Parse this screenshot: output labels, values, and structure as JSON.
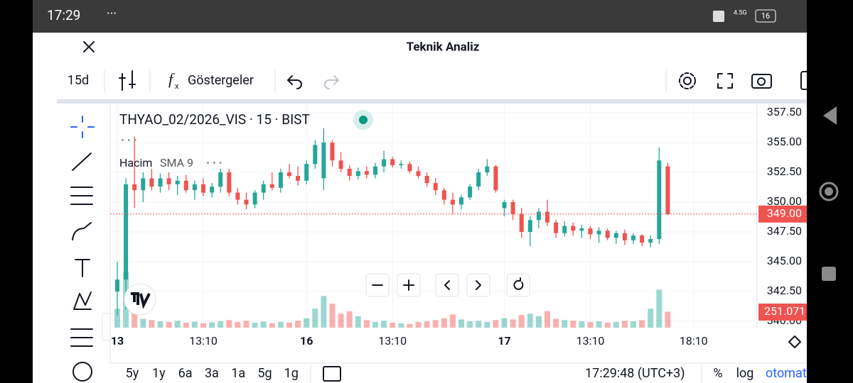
{
  "status_bar": {
    "time": "17:29",
    "network": "4.5G",
    "battery": "16"
  },
  "header": {
    "title": "Teknik Analiz"
  },
  "toolbar": {
    "interval": "15d",
    "indicators": "Göstergeler"
  },
  "legend": {
    "symbol": "THYAO_02/2026_VIS · 15 · BIST",
    "volume": "Hacim",
    "sma": "SMA 9"
  },
  "bottom_bar": {
    "ranges": [
      "5y",
      "1y",
      "6a",
      "3a",
      "1a",
      "5g",
      "1g"
    ],
    "clock": "17:29:48 (UTC+3)",
    "percent": "%",
    "log": "log",
    "auto": "otomat"
  },
  "chart_data": {
    "type": "candlestick",
    "categories": [
      "13",
      null,
      null,
      null,
      null,
      null,
      null,
      null,
      null,
      null,
      "13:10",
      null,
      null,
      null,
      null,
      null,
      null,
      null,
      null,
      null,
      null,
      null,
      "16",
      null,
      null,
      null,
      null,
      null,
      null,
      null,
      null,
      null,
      "13:10",
      null,
      null,
      null,
      null,
      null,
      null,
      null,
      null,
      null,
      null,
      null,
      null,
      "17",
      null,
      null,
      null,
      null,
      null,
      null,
      null,
      null,
      null,
      "13:10",
      null,
      null,
      null,
      null,
      null,
      null,
      null,
      null,
      null,
      null,
      null,
      "18:10"
    ],
    "open": [
      342.5,
      343.5,
      351.5,
      351,
      352,
      351.3,
      352,
      351.5,
      351.8,
      351,
      351.5,
      350.8,
      351.3,
      352.5,
      350.8,
      350.2,
      349.8,
      350.8,
      351.5,
      351.2,
      352.5,
      352.2,
      351.8,
      353.2,
      352,
      355,
      353.5,
      352.8,
      352.2,
      352.6,
      352.3,
      353,
      353.6,
      353.1,
      353.2,
      352.6,
      352.2,
      351.6,
      351,
      350.2,
      349.8,
      350.4,
      351.3,
      352.5,
      353,
      349.5,
      350,
      349,
      347.5,
      348.5,
      349.2,
      348.3,
      347.4,
      348,
      347.6,
      347.8,
      347.3,
      347.6,
      347,
      347.4,
      346.8,
      347.2,
      346.6,
      346.9,
      353,
      null,
      null,
      null
    ],
    "high": [
      345,
      352,
      355.5,
      352.5,
      352.8,
      352.4,
      352.5,
      352.2,
      352.3,
      351.8,
      352,
      351.6,
      352.8,
      352.8,
      351.2,
      350.8,
      351,
      351.8,
      352.5,
      352.8,
      353.2,
      353,
      353.5,
      355.2,
      356.2,
      355.2,
      354.2,
      353.1,
      352.9,
      353,
      353.3,
      354.3,
      353.8,
      353.5,
      353.4,
      353,
      352.5,
      352,
      351.2,
      350.8,
      350.6,
      351.5,
      352.8,
      353.6,
      353.1,
      350.2,
      350.2,
      349.5,
      348.8,
      349.5,
      350.2,
      348.5,
      348.4,
      348.3,
      348.1,
      348,
      347.9,
      347.8,
      347.6,
      347.7,
      347.4,
      347.3,
      347.2,
      354.6,
      353.3,
      null,
      null,
      null
    ],
    "low": [
      340.5,
      341,
      349.5,
      350,
      351,
      350.8,
      351,
      350.6,
      350.8,
      350.2,
      350.5,
      350.4,
      350.8,
      350.5,
      349.8,
      349.4,
      349.5,
      350.2,
      351,
      350.8,
      352,
      351.4,
      351.5,
      352.8,
      351,
      353,
      352.5,
      351.8,
      351.9,
      352,
      352,
      352.5,
      352.9,
      352.8,
      352.4,
      352,
      351.3,
      350.6,
      349.8,
      349,
      349.4,
      350.2,
      351,
      352.2,
      350.8,
      348.8,
      348.5,
      347,
      346.3,
      347.8,
      348,
      347,
      347.1,
      347.2,
      347,
      346.9,
      346.6,
      346.8,
      346.5,
      346.4,
      346.5,
      346.3,
      346.2,
      346.5,
      348.9,
      null,
      null,
      null
    ],
    "close": [
      343.5,
      351.5,
      351,
      352,
      351.3,
      352,
      351.5,
      351.8,
      351,
      351.5,
      350.8,
      351.3,
      352.5,
      350.8,
      350.2,
      349.8,
      350.8,
      351.5,
      351.2,
      352.5,
      352.2,
      351.8,
      353.2,
      354.8,
      355,
      353.5,
      352.8,
      352.2,
      352.6,
      352.3,
      353,
      353.6,
      353.1,
      353.2,
      352.6,
      352.2,
      351.6,
      351,
      350.2,
      349.8,
      350.4,
      351.3,
      352.5,
      353,
      351,
      350,
      349,
      347.5,
      348.5,
      349.2,
      348.3,
      347.4,
      348,
      347.6,
      347.8,
      347.3,
      347.6,
      347,
      347.4,
      346.8,
      347.2,
      346.6,
      346.9,
      353.5,
      349,
      null,
      null,
      null
    ],
    "volume": [
      300000,
      880000,
      250000,
      140000,
      120000,
      100000,
      90000,
      110000,
      80000,
      95000,
      70000,
      85000,
      100000,
      120000,
      90000,
      110000,
      80000,
      95000,
      70000,
      90000,
      80000,
      110000,
      150000,
      300000,
      500000,
      380000,
      220000,
      260000,
      180000,
      120000,
      90000,
      110000,
      80000,
      70000,
      60000,
      90000,
      100000,
      120000,
      150000,
      210000,
      130000,
      100000,
      110000,
      90000,
      120000,
      150000,
      130000,
      200000,
      220000,
      180000,
      260000,
      140000,
      120000,
      110000,
      100000,
      90000,
      100000,
      80000,
      90000,
      110000,
      100000,
      120000,
      300000,
      600000,
      251071,
      null,
      null,
      null
    ],
    "ylim": [
      340,
      357.5
    ],
    "yticks": [
      {
        "value": 340,
        "label": "340.00"
      },
      {
        "value": 342.5,
        "label": "342.50"
      },
      {
        "value": 345,
        "label": "345.00"
      },
      {
        "value": 347.5,
        "label": "347.50"
      },
      {
        "value": 350,
        "label": "350.00"
      },
      {
        "value": 352.5,
        "label": "352.50"
      },
      {
        "value": 355,
        "label": "355.00"
      },
      {
        "value": 357.5,
        "label": "357.50"
      }
    ],
    "volume_lim": [
      0,
      940000
    ],
    "price_tag": "349.00",
    "volume_tag": "251.071",
    "up_color": "#26a69a",
    "down_color": "#ef5350",
    "grid": true
  }
}
